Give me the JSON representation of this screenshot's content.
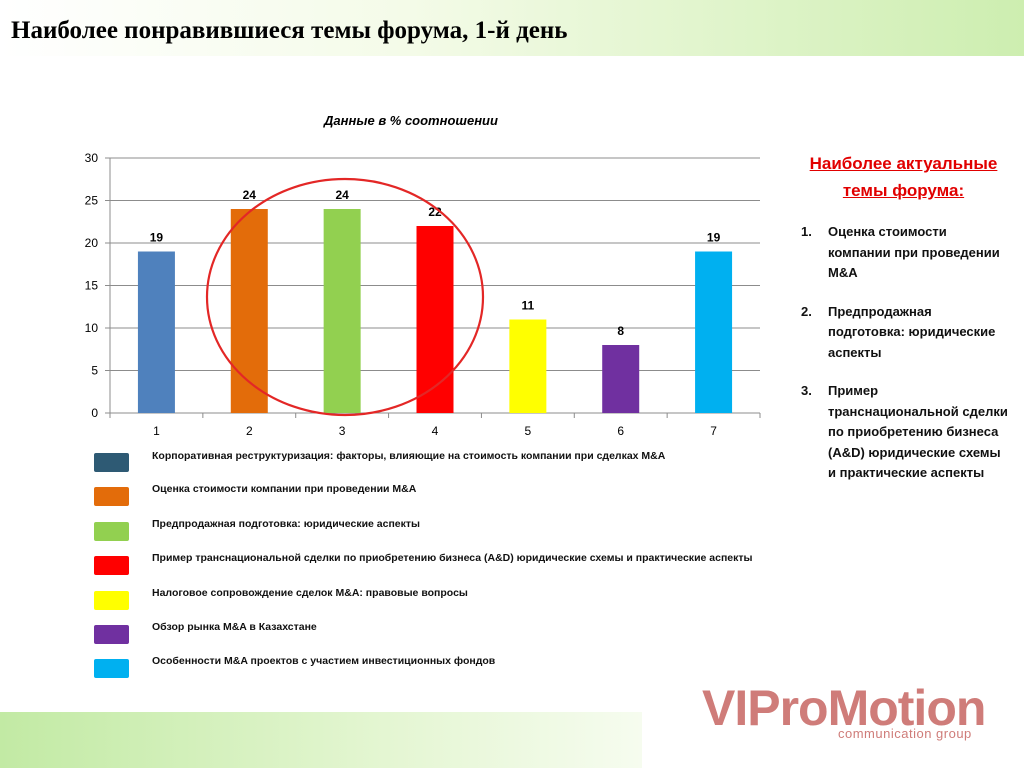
{
  "header": {
    "title": "Наиболее понравившиеся темы форума, 1-й день"
  },
  "chart_data": {
    "type": "bar",
    "title": "Данные в % соотношении",
    "categories": [
      "1",
      "2",
      "3",
      "4",
      "5",
      "6",
      "7"
    ],
    "values": [
      19,
      24,
      24,
      22,
      11,
      8,
      19
    ],
    "data_labels": [
      "19",
      "24",
      "24",
      "22",
      "11",
      "8",
      "19"
    ],
    "colors": [
      "#4f81bd",
      "#e36c0a",
      "#92d050",
      "#ff0000",
      "#ffff00",
      "#7030a0",
      "#00b0f0"
    ],
    "yticks": [
      "0",
      "5",
      "10",
      "15",
      "20",
      "25",
      "30"
    ],
    "ylim": [
      0,
      30
    ],
    "grid": true,
    "annotation": {
      "shape": "ellipse",
      "color": "#e32726",
      "encircles_categories": [
        "2",
        "3",
        "4"
      ]
    }
  },
  "legend": {
    "entries": [
      {
        "label": "Корпоративная реструктуризация: факторы, влияющие на стоимость компании при сделках M&A",
        "color": "#2e5a74"
      },
      {
        "label": "Оценка стоимости компании при проведении M&A",
        "color": "#e36c0a"
      },
      {
        "label": "Предпродажная подготовка: юридические аспекты",
        "color": "#92d050"
      },
      {
        "label": "Пример транснациональной сделки по приобретению бизнеса (A&D) юридические схемы и практические аспекты",
        "color": "#ff0000"
      },
      {
        "label": "Налоговое сопровождение сделок M&A: правовые вопросы",
        "color": "#ffff00"
      },
      {
        "label": "Обзор рынка M&A в Казахстане",
        "color": "#7030a0"
      },
      {
        "label": "Особенности M&A проектов с участием инвестиционных фондов",
        "color": "#00b0f0"
      }
    ]
  },
  "side_panel": {
    "heading": "Наиболее актуальные темы форума:",
    "items": [
      {
        "num": "1.",
        "text": "Оценка стоимости компании при проведении M&A"
      },
      {
        "num": "2.",
        "text": "Предпродажная подготовка: юридические аспекты"
      },
      {
        "num": "3.",
        "text": "Пример транснациональной сделки по приобретению бизнеса (A&D) юридические схемы и практические аспекты"
      }
    ]
  },
  "logo": {
    "main": "VIProMotion",
    "sub": "communication group"
  }
}
